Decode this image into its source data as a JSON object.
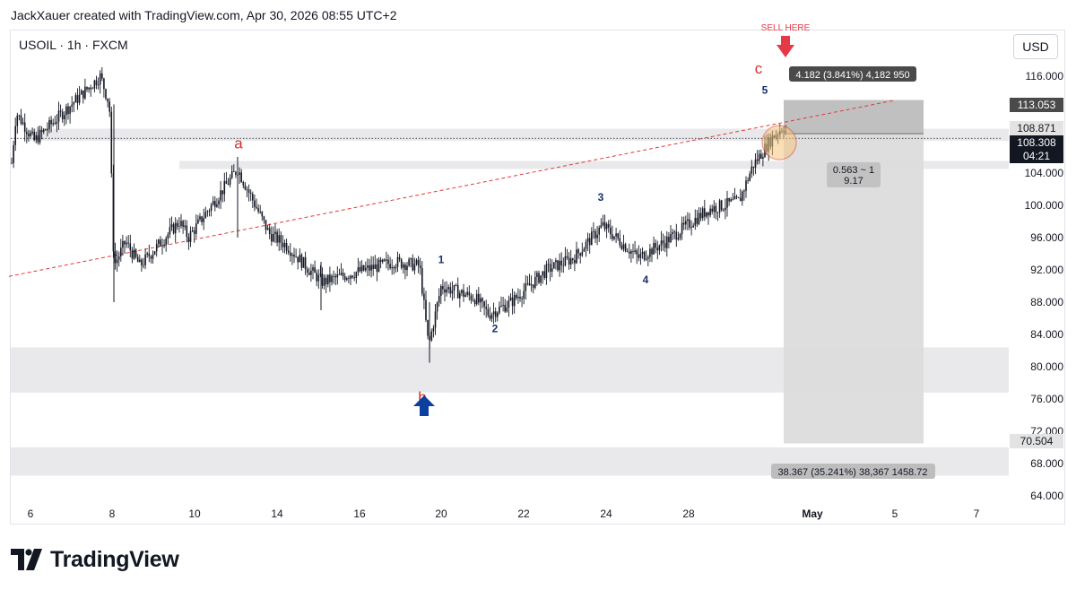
{
  "header": {
    "credit": "JackXauer created with TradingView.com, Apr 30, 2026 08:55 UTC+2"
  },
  "legend": {
    "symbol": "USOIL · 1h · FXCM"
  },
  "currency_button": "USD",
  "brand": {
    "name": "TradingView"
  },
  "colors": {
    "up": "#131722",
    "bg": "#ffffff",
    "zone": "#e9e9ec",
    "trend": "#e53935",
    "wave_major": "#d32f2f",
    "wave_minor": "#1a2f6e",
    "arrow_buy": "#0d3f9f",
    "arrow_sell": "#e53945",
    "sell_box": "#bdbdbd",
    "dark_label": "#4a4a4a"
  },
  "chart_data": {
    "type": "candlestick",
    "symbol": "USOIL",
    "interval": "1h",
    "exchange": "FXCM",
    "ylim": [
      62.0,
      119.0
    ],
    "y_ticks": [
      64.0,
      68.0,
      72.0,
      76.0,
      80.0,
      84.0,
      88.0,
      92.0,
      96.0,
      100.0,
      104.0,
      108.0,
      112.0,
      116.0
    ],
    "x_ticks": [
      "6",
      "8",
      "10",
      "14",
      "16",
      "20",
      "22",
      "24",
      "28",
      "May",
      "5",
      "7"
    ],
    "price_path": [
      [
        "6",
        104.0
      ],
      [
        "6",
        111.5
      ],
      [
        "6",
        108.0
      ],
      [
        "8",
        116.0
      ],
      [
        "8",
        112.5
      ],
      [
        "8",
        92.5
      ],
      [
        "8",
        95.5
      ],
      [
        "8",
        92.5
      ],
      [
        "10",
        98.0
      ],
      [
        "10",
        96.0
      ],
      [
        "10",
        104.5
      ],
      [
        "14",
        96.5
      ],
      [
        "14",
        95.0
      ],
      [
        "14",
        92.0
      ],
      [
        "16",
        90.5
      ],
      [
        "16",
        91.5
      ],
      [
        "16",
        93.0
      ],
      [
        "16",
        92.5
      ],
      [
        "20",
        82.5
      ],
      [
        "20",
        90.0
      ],
      [
        "20",
        88.5
      ],
      [
        "22",
        86.5
      ],
      [
        "22",
        88.0
      ],
      [
        "22",
        92.0
      ],
      [
        "24",
        93.5
      ],
      [
        "24",
        97.5
      ],
      [
        "24",
        93.5
      ],
      [
        "24",
        95.5
      ],
      [
        "28",
        99.5
      ],
      [
        "28",
        100.5
      ],
      [
        "28",
        105.0
      ],
      [
        "28",
        108.5
      ],
      [
        "28",
        109.8
      ],
      [
        "28",
        108.3
      ]
    ],
    "support_zones": [
      {
        "from": 104.5,
        "to": 105.5
      },
      {
        "from": 108.0,
        "to": 109.5
      },
      {
        "from": 76.8,
        "to": 82.4
      },
      {
        "from": 66.5,
        "to": 70.0
      }
    ],
    "trendline": {
      "from": [
        "6",
        91.2
      ],
      "to": [
        "May",
        110.8
      ],
      "style": "dashed"
    },
    "current_price_line": 108.308,
    "wave_labels": [
      {
        "text": "a",
        "x": "10",
        "price": 107.7,
        "degree": "major"
      },
      {
        "text": "b",
        "x": "20",
        "price": 76.3,
        "degree": "major"
      },
      {
        "text": "c",
        "x": "28",
        "price": 117.0,
        "degree": "major"
      },
      {
        "text": "1",
        "x": "20",
        "price": 93.3,
        "degree": "minor"
      },
      {
        "text": "2",
        "x": "22",
        "price": 84.7,
        "degree": "minor"
      },
      {
        "text": "3",
        "x": "24",
        "price": 101.0,
        "degree": "minor"
      },
      {
        "text": "4",
        "x": "24",
        "price": 90.8,
        "degree": "minor"
      },
      {
        "text": "5",
        "x": "28",
        "price": 114.3,
        "degree": "minor"
      }
    ],
    "annotations": [
      {
        "text": "SELL HERE",
        "kind": "sell-arrow"
      },
      {
        "text": "",
        "kind": "buy-arrow"
      }
    ],
    "short_position": {
      "entry": 108.871,
      "stop": 113.053,
      "target": 70.504,
      "risk_label": "4.182 (3.841%) 4,182 950",
      "reward_label": "38.367 (35.241%) 38,367 1458.72",
      "ratio_label_1": "0.563 ~ 1",
      "ratio_label_2": "9.17"
    },
    "price_labels": [
      {
        "text": "113.053",
        "price": 113.053,
        "style": "dark"
      },
      {
        "text": "108.871",
        "price": 108.871,
        "style": "light"
      },
      {
        "text": "108.308",
        "price": 108.308,
        "style": "black"
      },
      {
        "text": "04:21",
        "price": null,
        "style": "black"
      },
      {
        "text": "70.504",
        "price": 70.504,
        "style": "light"
      }
    ]
  }
}
